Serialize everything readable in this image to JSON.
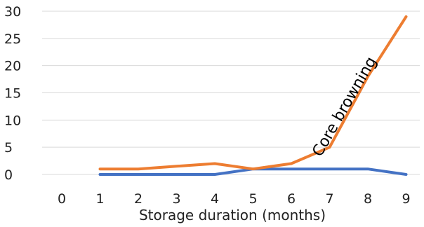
{
  "chart_data": {
    "type": "line",
    "title": "",
    "xlabel": "Storage duration (months)",
    "ylabel": "",
    "x": [
      "0",
      "1",
      "2",
      "3",
      "4",
      "5",
      "6",
      "7",
      "8",
      "9"
    ],
    "ylim": [
      0,
      30
    ],
    "yticks": [
      "0",
      "5",
      "10",
      "15",
      "20",
      "25",
      "30"
    ],
    "grid": "horizontal",
    "series": [
      {
        "name": "",
        "color": "#ED7D31",
        "values": [
          null,
          1,
          1,
          1.5,
          2,
          1,
          2,
          5,
          18,
          29
        ]
      },
      {
        "name": "",
        "color": "#4472C4",
        "values": [
          null,
          0,
          0,
          0,
          0,
          1,
          1,
          1,
          1,
          0
        ]
      }
    ],
    "annotations": [
      {
        "text": "Core browning",
        "x": 7.5,
        "y": 12
      }
    ]
  }
}
